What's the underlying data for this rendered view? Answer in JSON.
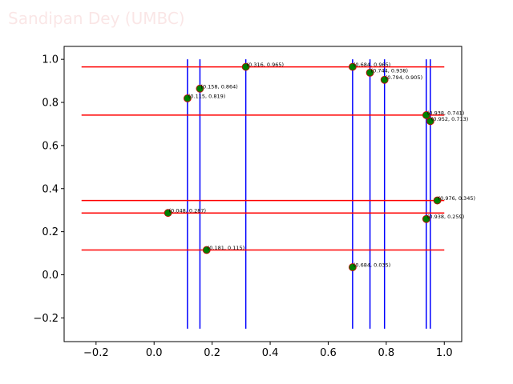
{
  "watermark": "Sandipan Dey (UMBC)",
  "colors": {
    "hline": "#ff0000",
    "vline": "#0000ff",
    "point_fill": "#008000",
    "point_edge": "#cc0000",
    "axes": "#000000"
  },
  "chart_data": {
    "type": "scatter",
    "title": "",
    "xlabel": "",
    "ylabel": "",
    "xlim": [
      -0.31,
      1.06
    ],
    "ylim": [
      -0.31,
      1.06
    ],
    "xticks": [
      -0.2,
      0.0,
      0.2,
      0.4,
      0.6,
      0.8,
      1.0
    ],
    "yticks": [
      -0.2,
      0.0,
      0.2,
      0.4,
      0.6,
      0.8,
      1.0
    ],
    "xtick_labels": [
      "−0.2",
      "0.0",
      "0.2",
      "0.4",
      "0.6",
      "0.8",
      "1.0"
    ],
    "ytick_labels": [
      "−0.2",
      "0.0",
      "0.2",
      "0.4",
      "0.6",
      "0.8",
      "1.0"
    ],
    "grid": false,
    "points": [
      {
        "x": 0.115,
        "y": 0.819,
        "label": "(0.115, 0.819)"
      },
      {
        "x": 0.158,
        "y": 0.864,
        "label": "(0.158, 0.864)"
      },
      {
        "x": 0.316,
        "y": 0.965,
        "label": "(0.316, 0.965)"
      },
      {
        "x": 0.684,
        "y": 0.965,
        "label": "(0.684, 0.965)"
      },
      {
        "x": 0.744,
        "y": 0.938,
        "label": "(0.744, 0.938)"
      },
      {
        "x": 0.794,
        "y": 0.905,
        "label": "(0.794, 0.905)"
      },
      {
        "x": 0.938,
        "y": 0.741,
        "label": "(0.938, 0.741)"
      },
      {
        "x": 0.952,
        "y": 0.713,
        "label": "(0.952, 0.713)"
      },
      {
        "x": 0.976,
        "y": 0.345,
        "label": "(0.976, 0.345)"
      },
      {
        "x": 0.938,
        "y": 0.259,
        "label": "(0.938, 0.259)"
      },
      {
        "x": 0.048,
        "y": 0.287,
        "label": "(0.048, 0.287)"
      },
      {
        "x": 0.181,
        "y": 0.115,
        "label": "(0.181, 0.115)"
      },
      {
        "x": 0.684,
        "y": 0.035,
        "label": "(0.684, 0.035)"
      }
    ],
    "hlines": [
      {
        "y": 0.965,
        "xmin": -0.25,
        "xmax": 1.0
      },
      {
        "y": 0.741,
        "xmin": -0.25,
        "xmax": 1.0
      },
      {
        "y": 0.345,
        "xmin": -0.25,
        "xmax": 1.0
      },
      {
        "y": 0.287,
        "xmin": -0.25,
        "xmax": 1.0
      },
      {
        "y": 0.115,
        "xmin": -0.25,
        "xmax": 1.0
      }
    ],
    "vlines": [
      {
        "x": 0.115,
        "ymin": -0.25,
        "ymax": 1.0
      },
      {
        "x": 0.158,
        "ymin": -0.25,
        "ymax": 1.0
      },
      {
        "x": 0.316,
        "ymin": -0.25,
        "ymax": 1.0
      },
      {
        "x": 0.684,
        "ymin": -0.25,
        "ymax": 1.0
      },
      {
        "x": 0.744,
        "ymin": -0.25,
        "ymax": 1.0
      },
      {
        "x": 0.794,
        "ymin": -0.25,
        "ymax": 1.0
      },
      {
        "x": 0.938,
        "ymin": -0.25,
        "ymax": 1.0
      },
      {
        "x": 0.952,
        "ymin": -0.25,
        "ymax": 1.0
      }
    ]
  }
}
